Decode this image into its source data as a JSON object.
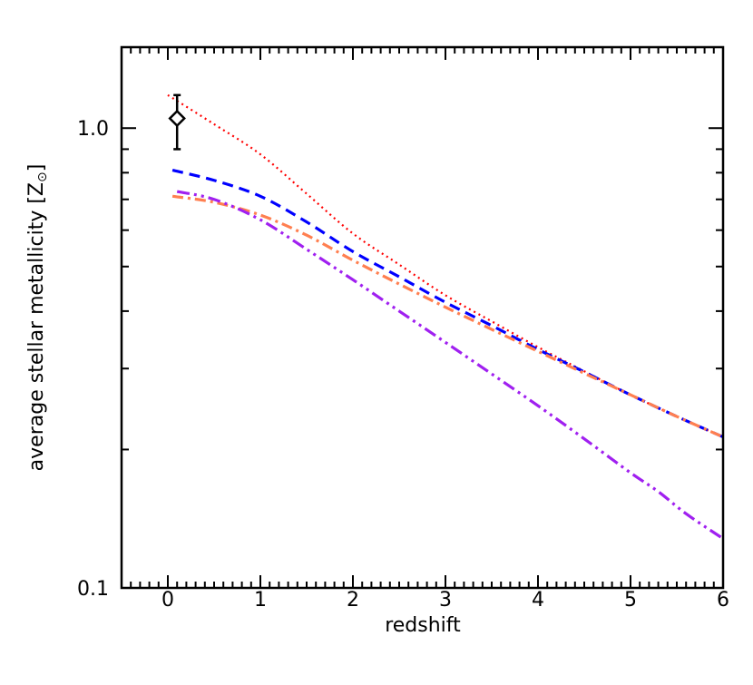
{
  "chart_data": {
    "type": "line",
    "title": "",
    "xlabel": "redshift",
    "ylabel": "average stellar metallicity [Z⊙]",
    "ylabel_parts": {
      "main": "average stellar metallicity [Z",
      "sun": "⊙",
      "close": "]"
    },
    "xlim": [
      -0.5,
      6
    ],
    "ylim": [
      0.1,
      1.5
    ],
    "yscale": "log",
    "grid": false,
    "legend": null,
    "x_ticks": [
      0,
      1,
      2,
      3,
      4,
      5,
      6
    ],
    "x_tick_labels": [
      "0",
      "1",
      "2",
      "3",
      "4",
      "5",
      "6"
    ],
    "x_minor_step": 0.1,
    "y_ticks": [
      0.1,
      1.0
    ],
    "y_tick_labels": [
      "0.1",
      "1.0"
    ],
    "y_minor_ticks": [
      0.2,
      0.3,
      0.4,
      0.5,
      0.6,
      0.7,
      0.8,
      0.9
    ],
    "series": [
      {
        "name": "red-dotted",
        "color": "#ff0000",
        "style": "dotted",
        "x": [
          0.0,
          0.5,
          1,
          1.5,
          2,
          2.5,
          3,
          3.5,
          4,
          4.5,
          5,
          5.5,
          6
        ],
        "values": [
          1.18,
          1.02,
          0.877,
          0.72,
          0.59,
          0.505,
          0.433,
          0.38,
          0.334,
          0.296,
          0.263,
          0.236,
          0.213
        ]
      },
      {
        "name": "blue-dashed",
        "color": "#0000ff",
        "style": "dashed",
        "x": [
          0.05,
          0.5,
          1,
          1.5,
          2,
          2.5,
          3,
          3.5,
          4,
          4.5,
          5,
          5.5,
          6
        ],
        "values": [
          0.81,
          0.77,
          0.711,
          0.625,
          0.539,
          0.475,
          0.418,
          0.372,
          0.33,
          0.295,
          0.263,
          0.236,
          0.213
        ]
      },
      {
        "name": "orange-dash-dot",
        "color": "#ff7f50",
        "style": "dashdot",
        "x": [
          0.05,
          0.5,
          1,
          1.5,
          2,
          2.5,
          3,
          3.5,
          4,
          4.5,
          5,
          5.5,
          6
        ],
        "values": [
          0.711,
          0.69,
          0.647,
          0.585,
          0.516,
          0.458,
          0.408,
          0.365,
          0.327,
          0.293,
          0.263,
          0.236,
          0.213
        ]
      },
      {
        "name": "purple-dash-dot-dot",
        "color": "#a020f0",
        "style": "dashdotdot",
        "x": [
          0.1,
          0.5,
          1,
          1.5,
          2,
          2.5,
          3,
          3.5,
          4,
          4.5,
          5,
          5.3,
          5.6,
          6
        ],
        "values": [
          0.728,
          0.7,
          0.632,
          0.545,
          0.468,
          0.4,
          0.342,
          0.292,
          0.249,
          0.211,
          0.178,
          0.162,
          0.145,
          0.128
        ]
      }
    ],
    "observations": [
      {
        "name": "data-point",
        "marker": "diamond",
        "color": "#000000",
        "x": 0.1,
        "y": 1.05,
        "y_err_low": 0.9,
        "y_err_high": 1.18
      }
    ]
  }
}
